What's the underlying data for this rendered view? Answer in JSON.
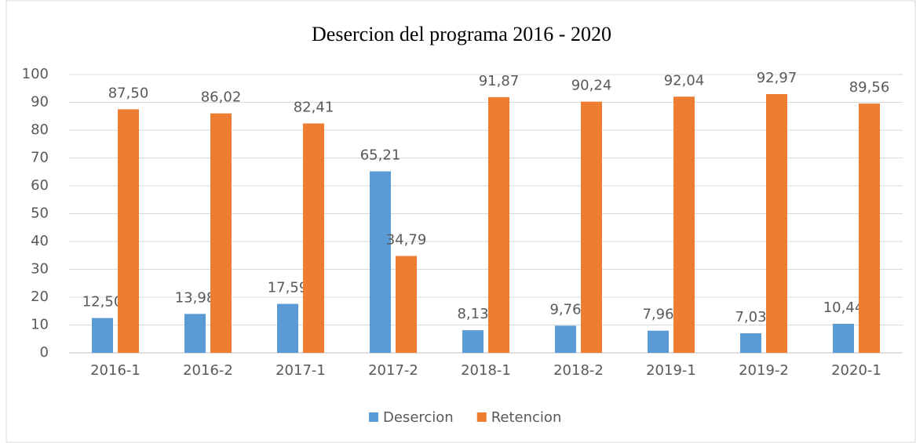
{
  "chart_data": {
    "type": "bar",
    "title": "Desercion del programa 2016 - 2020",
    "categories": [
      "2016-1",
      "2016-2",
      "2017-1",
      "2017-2",
      "2018-1",
      "2018-2",
      "2019-1",
      "2019-2",
      "2020-1"
    ],
    "series": [
      {
        "name": "Desercion",
        "color": "#5b9bd5",
        "values": [
          12.5,
          13.98,
          17.59,
          65.21,
          8.13,
          9.76,
          7.96,
          7.03,
          10.44
        ],
        "value_labels": [
          "12,50",
          "13,98",
          "17,59",
          "65,21",
          "8,13",
          "9,76",
          "7,96",
          "7,03",
          "10,44"
        ]
      },
      {
        "name": "Retencion",
        "color": "#ed7d31",
        "values": [
          87.5,
          86.02,
          82.41,
          34.79,
          91.87,
          90.24,
          92.04,
          92.97,
          89.56
        ],
        "value_labels": [
          "87,50",
          "86,02",
          "82,41",
          "34,79",
          "91,87",
          "90,24",
          "92,04",
          "92,97",
          "89,56"
        ]
      }
    ],
    "ylim": [
      0,
      100
    ],
    "yticks": [
      0,
      10,
      20,
      30,
      40,
      50,
      60,
      70,
      80,
      90,
      100
    ],
    "grid": true,
    "legend": "bottom"
  }
}
